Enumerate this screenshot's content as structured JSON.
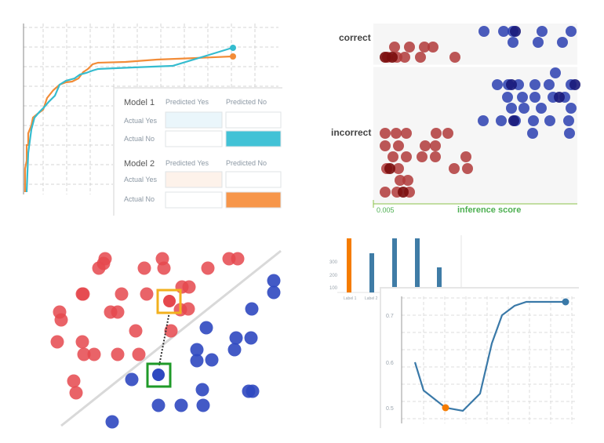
{
  "chart_data": [
    {
      "type": "line",
      "panel": "top-left",
      "series": [
        {
          "color": "#f28c38",
          "end_point": true
        },
        {
          "color": "#35bccf",
          "end_point": true
        }
      ],
      "confusion_tables": [
        {
          "title": "Model 1",
          "col_headers": [
            "Predicted Yes",
            "Predicted No"
          ],
          "row_headers": [
            "Actual Yes",
            "Actual No"
          ],
          "fills": [
            [
              "#eaf6fb",
              "#ffffff"
            ],
            [
              "#ffffff",
              "#42c2d6"
            ]
          ]
        },
        {
          "title": "Model 2",
          "col_headers": [
            "Predicted Yes",
            "Predicted No"
          ],
          "row_headers": [
            "Actual Yes",
            "Actual No"
          ],
          "fills": [
            [
              "#fdf2ea",
              "#ffffff"
            ],
            [
              "#ffffff",
              "#f7964a"
            ]
          ]
        }
      ]
    },
    {
      "type": "scatter",
      "panel": "top-right",
      "categories": [
        "correct",
        "incorrect"
      ],
      "xlabel": "inference score",
      "x_tick": "0.005",
      "colors": {
        "negative": "#b03a3a",
        "negative_dark": "#7a0d0d",
        "positive": "#2b3fb0",
        "positive_dark": "#1a1a7a"
      }
    },
    {
      "type": "scatter",
      "panel": "bottom-left",
      "colors": {
        "red": "#e5484d",
        "blue": "#2f48c0",
        "line": "#d9d9d9",
        "highlight_red": "#f2b01e",
        "highlight_blue": "#1f9a28"
      }
    },
    {
      "type": "bar",
      "panel": "bottom-right-back",
      "y_ticks": [
        "300",
        "200",
        "100"
      ],
      "categories": [
        "Label 1",
        "Label 2"
      ],
      "bars": [
        {
          "color": "#f57c00"
        },
        {
          "color": "#3f7ca6"
        },
        {
          "color": "#3f7ca6"
        },
        {
          "color": "#3f7ca6"
        },
        {
          "color": "#3f7ca6"
        }
      ]
    },
    {
      "type": "line",
      "panel": "bottom-right-front",
      "y_ticks": [
        "0.7",
        "0.6",
        "0.5"
      ],
      "series_color": "#3a79a8",
      "highlight_color": "#f57c00"
    }
  ]
}
